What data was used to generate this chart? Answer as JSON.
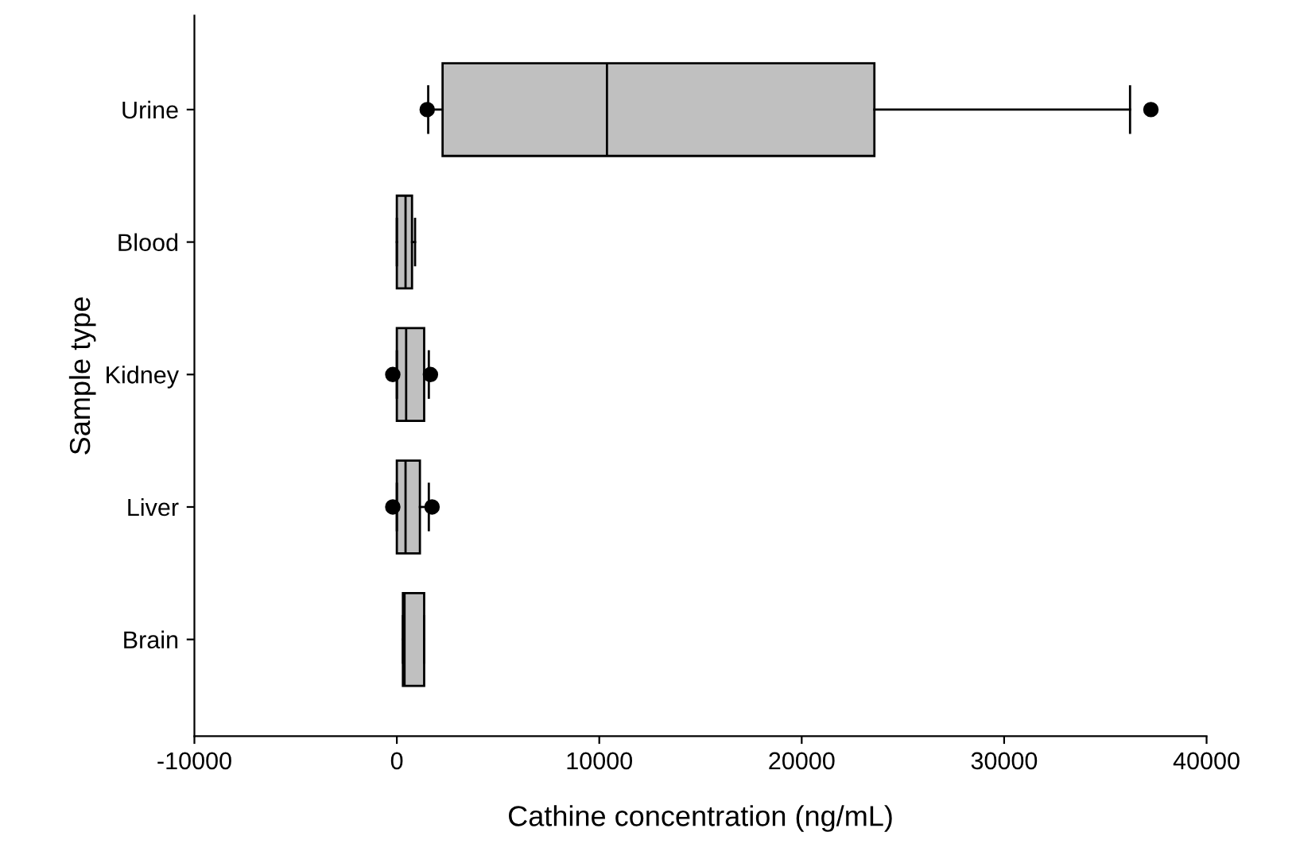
{
  "chart_data": {
    "type": "box",
    "orientation": "horizontal",
    "xlabel": "Cathine concentration (ng/mL)",
    "ylabel": "Sample type",
    "categories": [
      "Urine",
      "Blood",
      "Kidney",
      "Liver",
      "Brain"
    ],
    "boxes": [
      {
        "low": 1550,
        "q1": 2260,
        "median": 10380,
        "q3": 23590,
        "high": 36220,
        "outliers": [
          1500,
          37250
        ]
      },
      {
        "low": 0,
        "q1": 0,
        "median": 430,
        "q3": 750,
        "high": 900
      },
      {
        "low": 0,
        "q1": 0,
        "median": 460,
        "q3": 1350,
        "high": 1580,
        "outliers": [
          -200,
          1660
        ]
      },
      {
        "low": 0,
        "q1": 0,
        "median": 430,
        "q3": 1140,
        "high": 1580,
        "outliers": [
          -200,
          1740
        ]
      },
      {
        "low": 300,
        "q1": 300,
        "median": 380,
        "q3": 1350,
        "high": 1350
      }
    ],
    "color": "#c0c0c0",
    "xlim": [
      -10000,
      40000
    ],
    "xticks": [
      -10000,
      0,
      10000,
      20000,
      30000,
      40000
    ],
    "grid": false
  }
}
